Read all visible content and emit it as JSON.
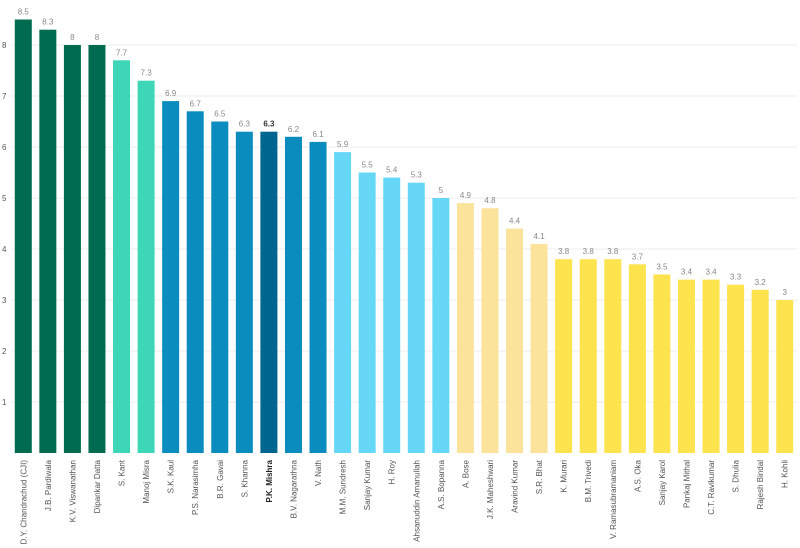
{
  "chart_data": {
    "type": "bar",
    "categories": [
      "D.Y. Chandrachud (CJI)",
      "J.B. Pardiwala",
      "K.V. Viswanathan",
      "Dipankar Datta",
      "S. Kant",
      "Manoj Misra",
      "S.K. Kaul",
      "P.S. Narasimha",
      "B.R. Gavai",
      "S. Khanna",
      "P.K. Mishra",
      "B.V. Nagarathna",
      "V. Nath",
      "M.M. Sundresh",
      "Sanjay Kumar",
      "H. Roy",
      "Ahsanuddin Amanullah",
      "A.S. Bopanna",
      "A. Bose",
      "J.K. Maheshwari",
      "Aravind Kumar",
      "S.R. Bhat",
      "K. Murari",
      "B.M. Trivedi",
      "V. Ramasubramaniam",
      "A.S. Oka",
      "Sanjay Karol",
      "Pankaj Mithal",
      "C.T. Ravikumar",
      "S. Dhulia",
      "Rajesh Bindal",
      "H. Kohli"
    ],
    "values": [
      8.5,
      8.3,
      8,
      8,
      7.7,
      7.3,
      6.9,
      6.7,
      6.5,
      6.3,
      6.3,
      6.2,
      6.1,
      5.9,
      5.5,
      5.4,
      5.3,
      5,
      4.9,
      4.8,
      4.4,
      4.1,
      3.8,
      3.8,
      3.8,
      3.7,
      3.5,
      3.4,
      3.4,
      3.3,
      3.2,
      3
    ],
    "colors": [
      "#006b4f",
      "#006b4f",
      "#006b4f",
      "#006b4f",
      "#3dd6b6",
      "#3dd6b6",
      "#0a8cbf",
      "#0a8cbf",
      "#0a8cbf",
      "#0a8cbf",
      "#006690",
      "#0a8cbf",
      "#0a8cbf",
      "#66d7f7",
      "#66d7f7",
      "#66d7f7",
      "#66d7f7",
      "#66d7f7",
      "#fbe39c",
      "#fbe39c",
      "#fbe39c",
      "#fbe39c",
      "#fde34e",
      "#fde34e",
      "#fde34e",
      "#fde34e",
      "#fde34e",
      "#fde34e",
      "#fde34e",
      "#fde34e",
      "#fde34e",
      "#fde34e"
    ],
    "highlight": 10,
    "ylim": [
      0,
      8.8
    ],
    "yticks": [
      1,
      2,
      3,
      4,
      5,
      6,
      7,
      8
    ],
    "grid": true
  }
}
